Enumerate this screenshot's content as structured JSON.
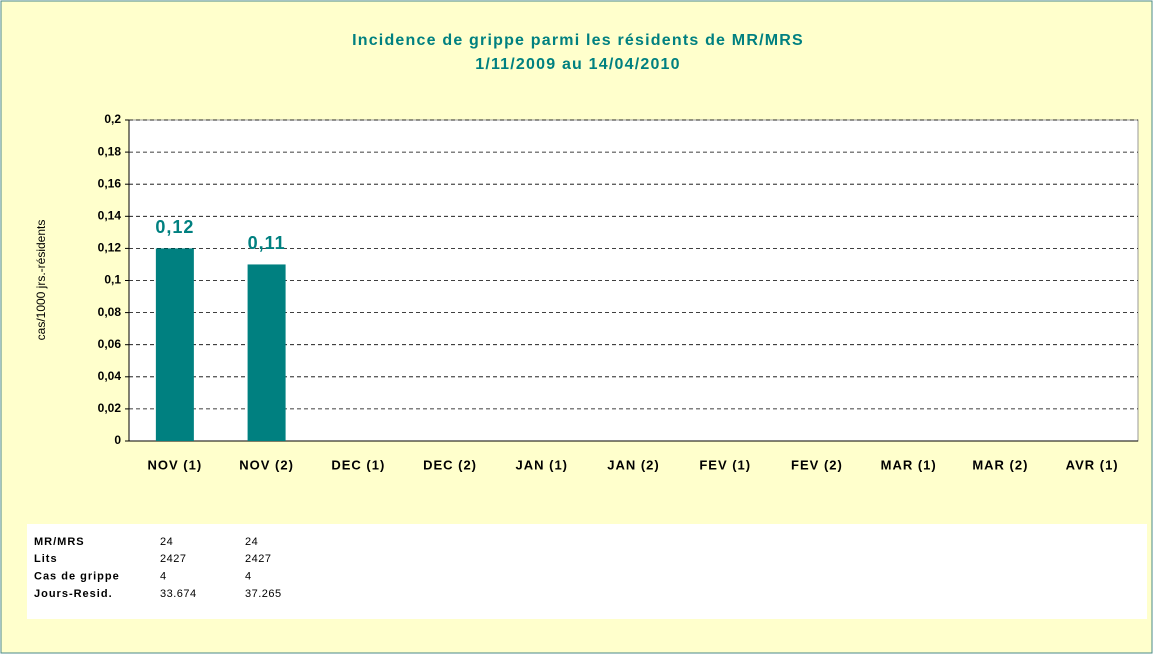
{
  "chart_data": {
    "type": "bar",
    "title": "Incidence de grippe parmi les résidents de MR/MRS",
    "subtitle": "1/11/2009 au 14/04/2010",
    "y_label": "cas/1000 jrs.-résidents",
    "categories": [
      "NOV (1)",
      "NOV (2)",
      "DEC (1)",
      "DEC (2)",
      "JAN (1)",
      "JAN (2)",
      "FEV (1)",
      "FEV (2)",
      "MAR (1)",
      "MAR (2)",
      "AVR (1)"
    ],
    "values": [
      0.12,
      0.11,
      null,
      null,
      null,
      null,
      null,
      null,
      null,
      null,
      null
    ],
    "value_labels": [
      "0,12",
      "0,11",
      null,
      null,
      null,
      null,
      null,
      null,
      null,
      null,
      null
    ],
    "color": "#008080",
    "ylim": [
      0,
      0.2
    ],
    "yticks": [
      0,
      {
        "value": 0.02,
        "label": "0,02"
      },
      {
        "value": 0.04,
        "label": "0,04"
      },
      {
        "value": 0.06,
        "label": "0,06"
      },
      {
        "value": 0.08,
        "label": "0,08"
      },
      {
        "value": 0.1,
        "label": "0,1"
      },
      {
        "value": 0.12,
        "label": "0,12"
      },
      {
        "value": 0.14,
        "label": "0,14"
      },
      {
        "value": 0.16,
        "label": "0,16"
      },
      {
        "value": 0.18,
        "label": "0,18"
      },
      {
        "value": 0.2,
        "label": "0,2"
      }
    ],
    "grid": true
  },
  "table": {
    "rows": [
      [
        "MR/MRS",
        "24",
        "24"
      ],
      [
        "Lits",
        "2427",
        "2427"
      ],
      [
        "Cas de grippe",
        "4",
        "4"
      ],
      [
        "Jours-Resid.",
        "33.674",
        "37.265"
      ]
    ]
  }
}
